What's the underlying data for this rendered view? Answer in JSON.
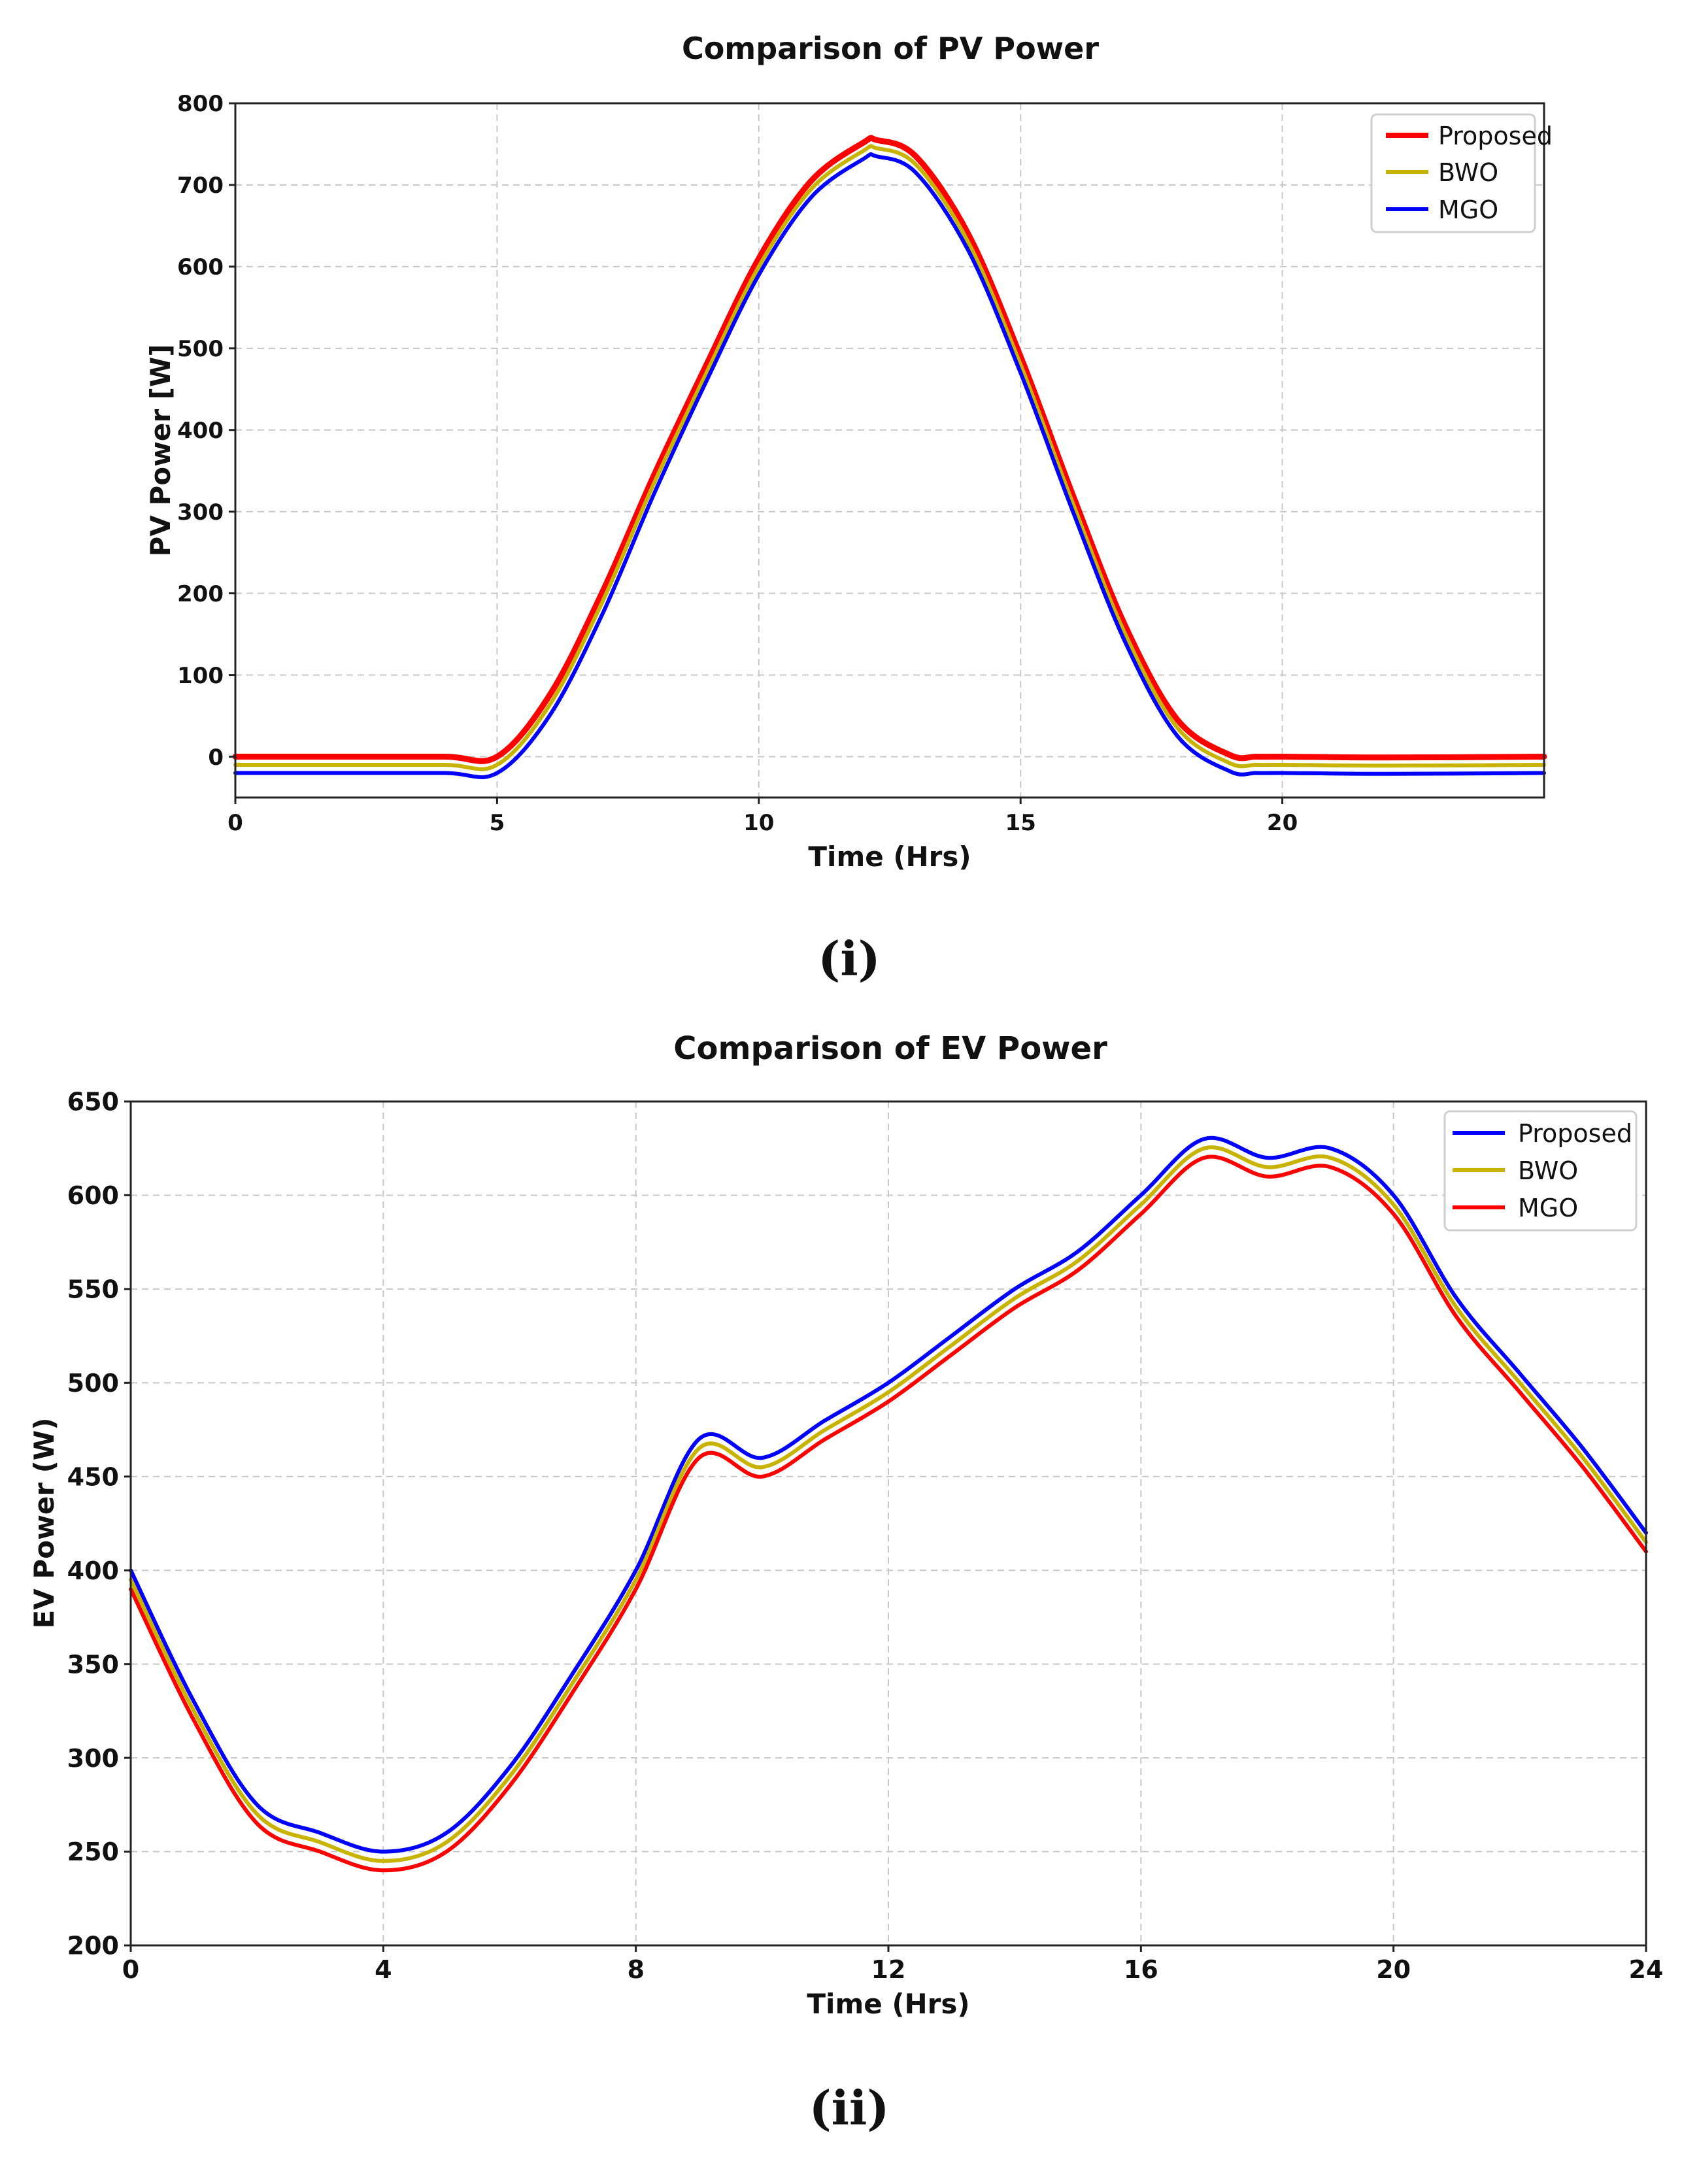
{
  "chart_data": [
    {
      "type": "line",
      "title": "Comparison of PV Power",
      "xlabel": "Time (Hrs)",
      "ylabel": "PV Power [W]",
      "xlim": [
        0,
        25
      ],
      "ylim": [
        -50,
        800
      ],
      "xticks": [
        0,
        5,
        10,
        15,
        20
      ],
      "yticks": [
        0,
        100,
        200,
        300,
        400,
        500,
        600,
        700,
        800
      ],
      "grid": true,
      "legend_position": "top-right",
      "caption": "(i)",
      "x": [
        0,
        2,
        4,
        5,
        6,
        7,
        8,
        9,
        10,
        11,
        12,
        12.25,
        13,
        14,
        15,
        16,
        17,
        18,
        19,
        19.5,
        20,
        22,
        25
      ],
      "series": [
        {
          "name": "Proposed",
          "color": "#ff0000",
          "values": [
            0,
            0,
            0,
            0,
            75,
            200,
            345,
            480,
            610,
            705,
            752,
            755,
            735,
            640,
            490,
            320,
            160,
            45,
            2,
            0,
            0,
            -1,
            0
          ]
        },
        {
          "name": "BWO",
          "color": "#c8b400",
          "values": [
            -10,
            -10,
            -10,
            -10,
            63,
            188,
            335,
            470,
            600,
            695,
            742,
            745,
            725,
            630,
            480,
            310,
            150,
            35,
            -8,
            -10,
            -10,
            -11,
            -10
          ]
        },
        {
          "name": "MGO",
          "color": "#0000ff",
          "values": [
            -20,
            -20,
            -20,
            -20,
            50,
            173,
            322,
            460,
            590,
            685,
            732,
            735,
            715,
            620,
            470,
            300,
            140,
            25,
            -18,
            -20,
            -20,
            -21,
            -20
          ]
        }
      ]
    },
    {
      "type": "line",
      "title": "Comparison of EV Power",
      "xlabel": "Time (Hrs)",
      "ylabel": "EV Power (W)",
      "xlim": [
        0,
        24
      ],
      "ylim": [
        200,
        650
      ],
      "xticks": [
        0,
        4,
        8,
        12,
        16,
        20,
        24
      ],
      "yticks": [
        200,
        250,
        300,
        350,
        400,
        450,
        500,
        550,
        600,
        650
      ],
      "grid": true,
      "legend_position": "top-right",
      "caption": "(ii)",
      "x": [
        0,
        1,
        2,
        3,
        4,
        5,
        6,
        7,
        8,
        9,
        10,
        11,
        12,
        13,
        14,
        15,
        16,
        17,
        18,
        19,
        20,
        21,
        22,
        23,
        24
      ],
      "series": [
        {
          "name": "Proposed",
          "color": "#0000ff",
          "values": [
            400,
            330,
            275,
            260,
            250,
            260,
            295,
            345,
            400,
            470,
            460,
            480,
            500,
            525,
            550,
            570,
            600,
            630,
            620,
            625,
            600,
            545,
            505,
            465,
            420
          ]
        },
        {
          "name": "BWO",
          "color": "#c8b400",
          "values": [
            395,
            325,
            270,
            255,
            245,
            255,
            290,
            340,
            395,
            465,
            455,
            475,
            495,
            520,
            545,
            565,
            595,
            625,
            615,
            620,
            595,
            540,
            500,
            460,
            415
          ]
        },
        {
          "name": "MGO",
          "color": "#ff0000",
          "values": [
            390,
            320,
            265,
            250,
            240,
            250,
            285,
            335,
            390,
            460,
            450,
            470,
            490,
            515,
            540,
            560,
            590,
            620,
            610,
            615,
            590,
            535,
            495,
            455,
            410
          ]
        }
      ]
    }
  ]
}
